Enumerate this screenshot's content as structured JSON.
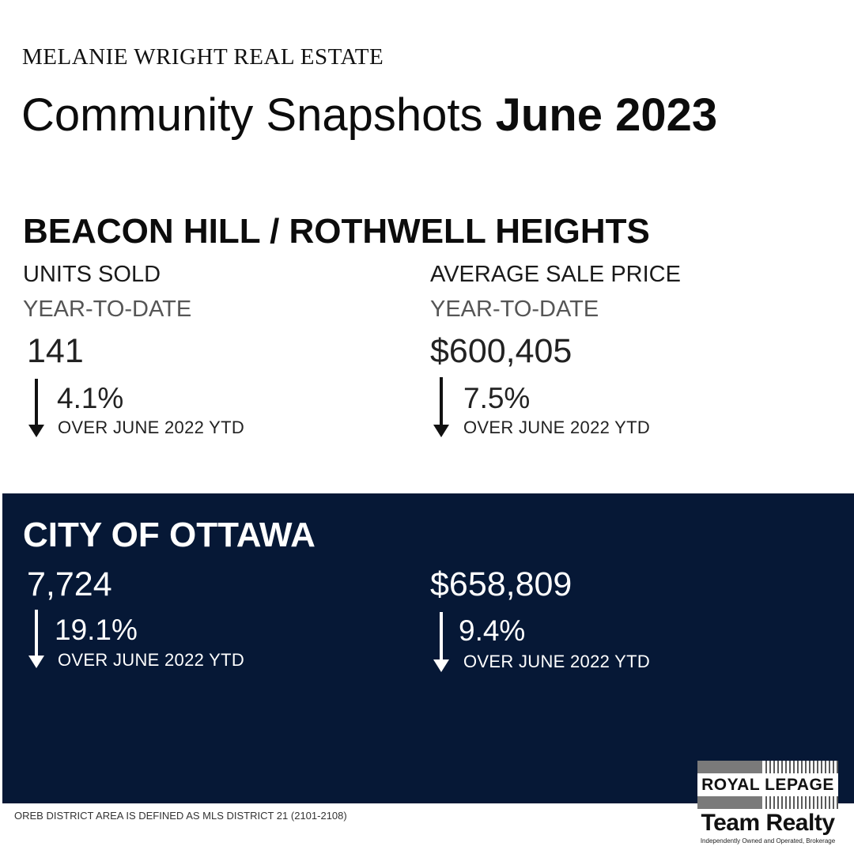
{
  "brand": "MELANIE WRIGHT REAL ESTATE",
  "title": {
    "regular": "Community Snapshots",
    "bold": "June 2023"
  },
  "neighbourhood": {
    "name": "BEACON HILL / ROTHWELL HEIGHTS",
    "units_label": "UNITS SOLD",
    "price_label": "AVERAGE SALE PRICE",
    "period": "YEAR-TO-DATE",
    "units_sold": "141",
    "units_change": "4.1%",
    "units_direction": "down",
    "avg_price": "$600,405",
    "price_change": "7.5%",
    "price_direction": "down",
    "comparison": "OVER JUNE 2022 YTD"
  },
  "city": {
    "name": "CITY OF OTTAWA",
    "units_sold": "7,724",
    "units_change": "19.1%",
    "units_direction": "down",
    "avg_price": "$658,809",
    "price_change": "9.4%",
    "price_direction": "down",
    "comparison": "OVER JUNE 2022 YTD"
  },
  "footnote": "OREB DISTRICT AREA IS DEFINED AS MLS DISTRICT 21 (2101-2108)",
  "logo": {
    "line1": "ROYAL LEPAGE",
    "line2": "Team Realty",
    "tagline": "Independently Owned and Operated, Brokerage"
  },
  "colors": {
    "dark_band": "#061836",
    "text": "#111111",
    "white": "#ffffff"
  },
  "icons": {
    "change_indicator": "arrow-down-icon"
  }
}
